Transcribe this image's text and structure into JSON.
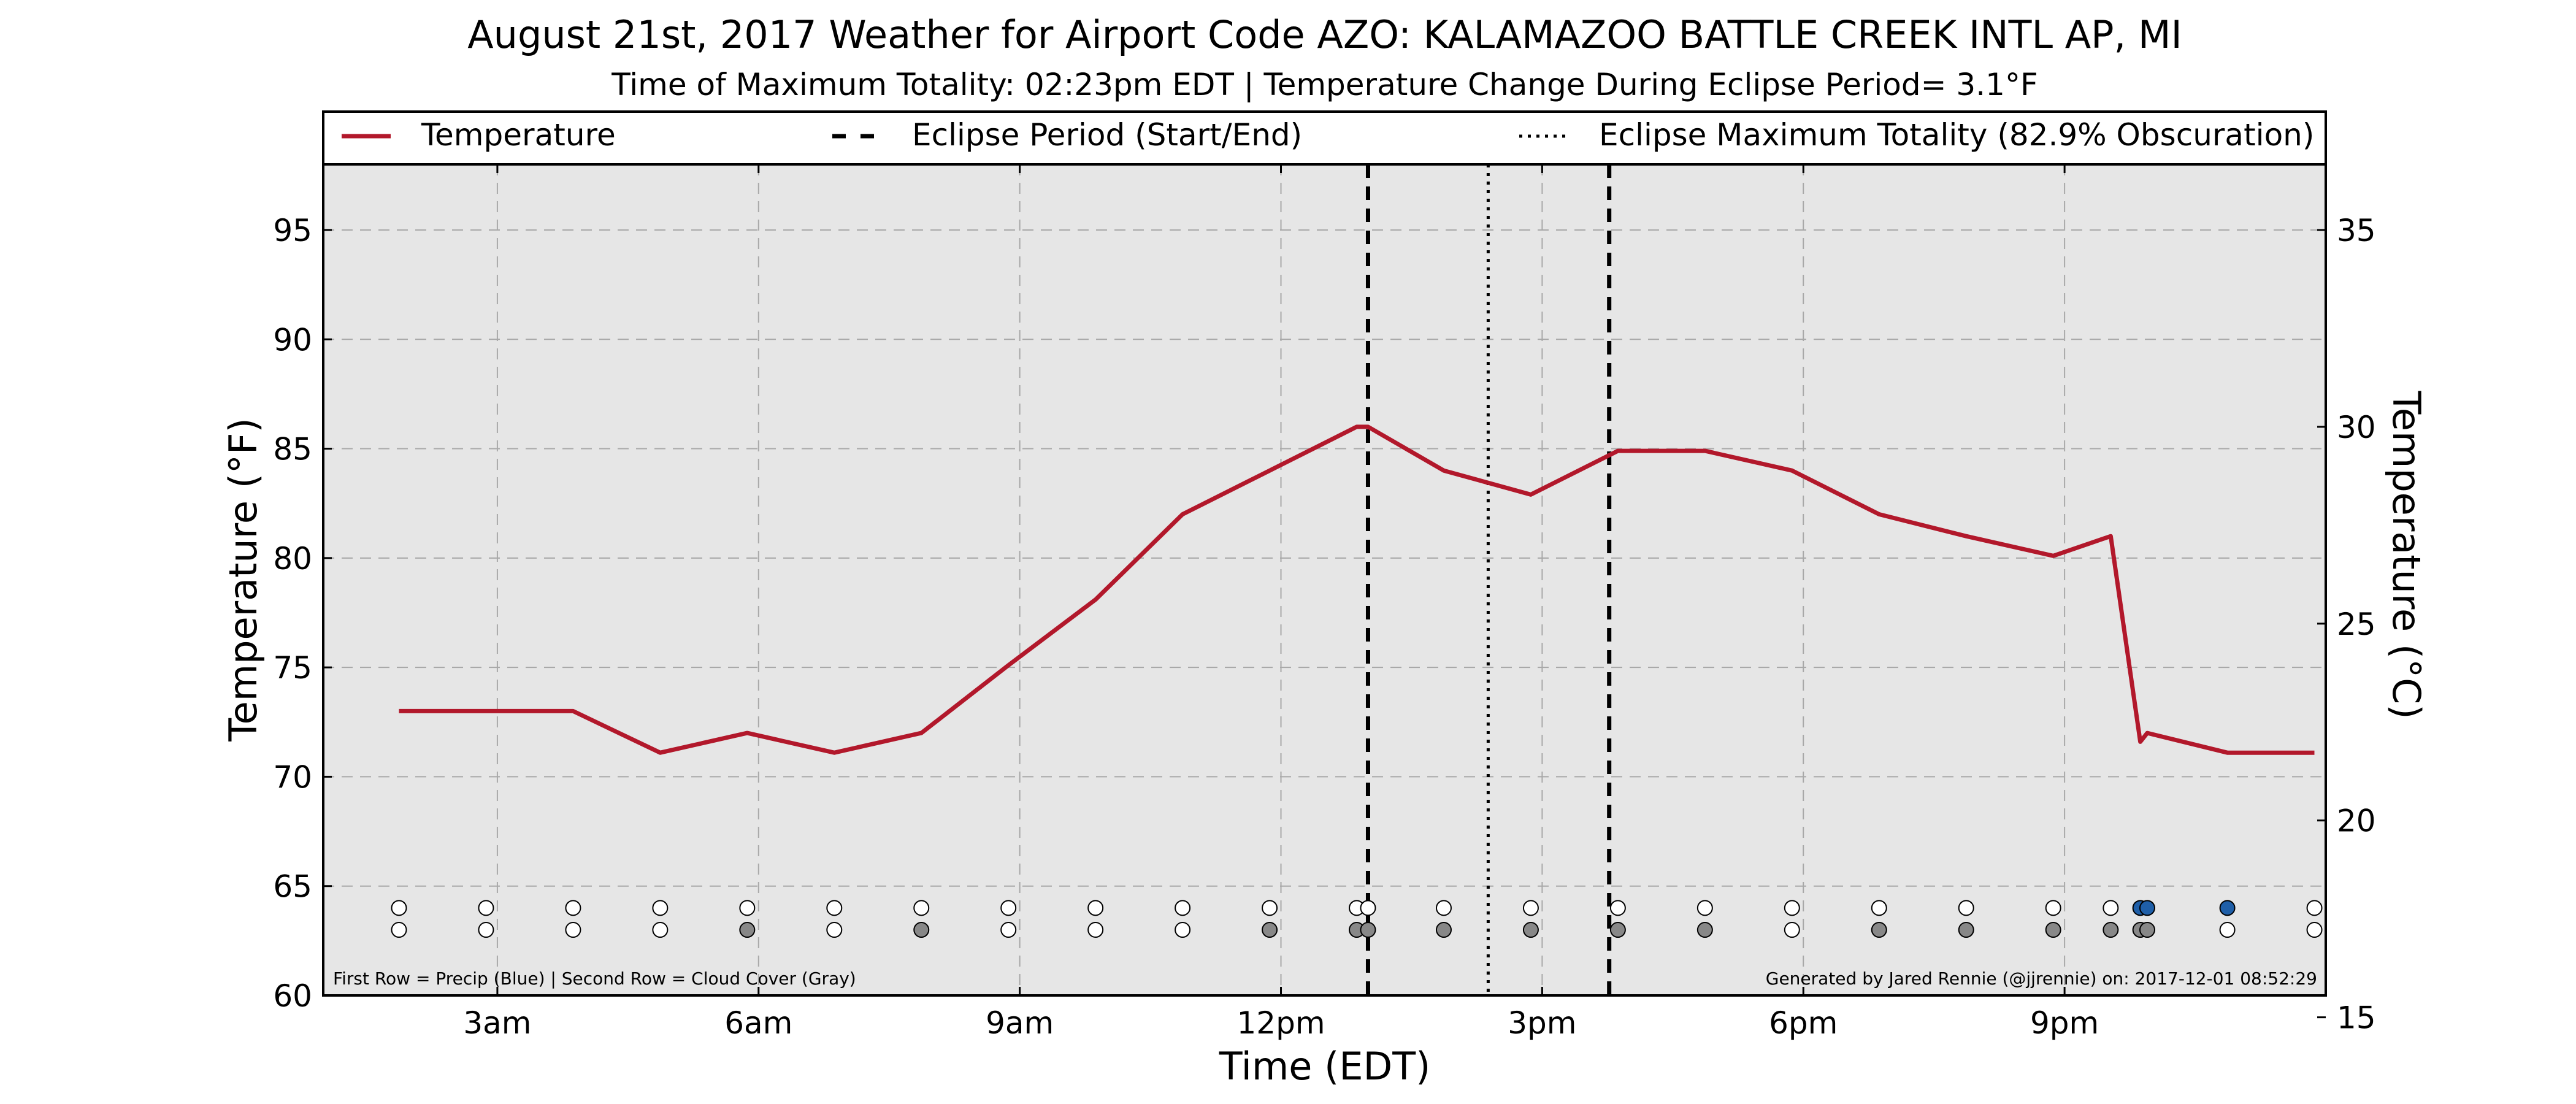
{
  "chart_data": {
    "type": "line",
    "title": "August 21st, 2017 Weather for Airport Code AZO: KALAMAZOO BATTLE CREEK INTL AP, MI",
    "subtitle": "Time of Maximum Totality: 02:23pm EDT | Temperature Change During Eclipse Period= 3.1°F",
    "xlabel": "Time (EDT)",
    "ylabel": "Temperature (°F)",
    "ylabel_right": "Temperature (°C)",
    "xlim": [
      1.0,
      24.0
    ],
    "ylim": [
      60,
      98
    ],
    "ylim_right_c": [
      15.5556,
      36.6667
    ],
    "x_ticks": [
      {
        "x": 3,
        "label": "3am"
      },
      {
        "x": 6,
        "label": "6am"
      },
      {
        "x": 9,
        "label": "9am"
      },
      {
        "x": 12,
        "label": "12pm"
      },
      {
        "x": 15,
        "label": "3pm"
      },
      {
        "x": 18,
        "label": "6pm"
      },
      {
        "x": 21,
        "label": "9pm"
      }
    ],
    "y_ticks": [
      60,
      65,
      70,
      75,
      80,
      85,
      90,
      95
    ],
    "y_ticks_right": [
      15,
      20,
      25,
      30,
      35
    ],
    "grid": true,
    "legend": {
      "placement": "top",
      "entries": [
        {
          "label": "Temperature",
          "style": "solid"
        },
        {
          "label": "Eclipse Period (Start/End)",
          "style": "dashed"
        },
        {
          "label": "Eclipse Maximum Totality (82.9% Obscuration)",
          "style": "dotted"
        }
      ]
    },
    "series": [
      {
        "name": "Temperature",
        "color": "#b2182b",
        "points": [
          [
            1.87,
            73
          ],
          [
            2.87,
            73
          ],
          [
            3.87,
            73
          ],
          [
            4.87,
            71.1
          ],
          [
            5.87,
            72
          ],
          [
            6.87,
            71.1
          ],
          [
            7.87,
            72
          ],
          [
            8.87,
            75.1
          ],
          [
            9.87,
            78.1
          ],
          [
            10.87,
            82
          ],
          [
            11.87,
            84
          ],
          [
            12.87,
            86
          ],
          [
            13.0,
            86
          ],
          [
            13.87,
            84
          ],
          [
            14.87,
            82.9
          ],
          [
            15.87,
            84.9
          ],
          [
            16.87,
            84.9
          ],
          [
            17.87,
            84
          ],
          [
            18.87,
            82
          ],
          [
            19.87,
            81
          ],
          [
            20.87,
            80.1
          ],
          [
            21.53,
            81
          ],
          [
            21.87,
            71.6
          ],
          [
            21.95,
            72
          ],
          [
            22.87,
            71.1
          ],
          [
            23.87,
            71.1
          ]
        ]
      }
    ],
    "eclipse_period": {
      "start": 13.0,
      "end": 15.77,
      "color": "#000000"
    },
    "max_totality": 14.38,
    "precip_row_y": 64,
    "cloud_row_y": 63,
    "precip_points": [
      {
        "x": 1.87,
        "color": "#ffffff"
      },
      {
        "x": 2.87,
        "color": "#ffffff"
      },
      {
        "x": 3.87,
        "color": "#ffffff"
      },
      {
        "x": 4.87,
        "color": "#ffffff"
      },
      {
        "x": 5.87,
        "color": "#ffffff"
      },
      {
        "x": 6.87,
        "color": "#ffffff"
      },
      {
        "x": 7.87,
        "color": "#ffffff"
      },
      {
        "x": 8.87,
        "color": "#ffffff"
      },
      {
        "x": 9.87,
        "color": "#ffffff"
      },
      {
        "x": 10.87,
        "color": "#ffffff"
      },
      {
        "x": 11.87,
        "color": "#ffffff"
      },
      {
        "x": 12.87,
        "color": "#ffffff"
      },
      {
        "x": 13.0,
        "color": "#ffffff"
      },
      {
        "x": 13.87,
        "color": "#ffffff"
      },
      {
        "x": 14.87,
        "color": "#ffffff"
      },
      {
        "x": 15.87,
        "color": "#ffffff"
      },
      {
        "x": 16.87,
        "color": "#ffffff"
      },
      {
        "x": 17.87,
        "color": "#ffffff"
      },
      {
        "x": 18.87,
        "color": "#ffffff"
      },
      {
        "x": 19.87,
        "color": "#ffffff"
      },
      {
        "x": 20.87,
        "color": "#ffffff"
      },
      {
        "x": 21.53,
        "color": "#ffffff"
      },
      {
        "x": 21.87,
        "color": "#1f5fa8"
      },
      {
        "x": 21.95,
        "color": "#1f5fa8"
      },
      {
        "x": 22.87,
        "color": "#1f5fa8"
      },
      {
        "x": 23.87,
        "color": "#ffffff"
      }
    ],
    "cloud_points": [
      {
        "x": 1.87,
        "color": "#ffffff"
      },
      {
        "x": 2.87,
        "color": "#ffffff"
      },
      {
        "x": 3.87,
        "color": "#ffffff"
      },
      {
        "x": 4.87,
        "color": "#ffffff"
      },
      {
        "x": 5.87,
        "color": "#888888"
      },
      {
        "x": 6.87,
        "color": "#ffffff"
      },
      {
        "x": 7.87,
        "color": "#888888"
      },
      {
        "x": 8.87,
        "color": "#ffffff"
      },
      {
        "x": 9.87,
        "color": "#ffffff"
      },
      {
        "x": 10.87,
        "color": "#ffffff"
      },
      {
        "x": 11.87,
        "color": "#888888"
      },
      {
        "x": 12.87,
        "color": "#888888"
      },
      {
        "x": 13.0,
        "color": "#888888"
      },
      {
        "x": 13.87,
        "color": "#888888"
      },
      {
        "x": 14.87,
        "color": "#888888"
      },
      {
        "x": 15.87,
        "color": "#888888"
      },
      {
        "x": 16.87,
        "color": "#888888"
      },
      {
        "x": 17.87,
        "color": "#ffffff"
      },
      {
        "x": 18.87,
        "color": "#888888"
      },
      {
        "x": 19.87,
        "color": "#888888"
      },
      {
        "x": 20.87,
        "color": "#888888"
      },
      {
        "x": 21.53,
        "color": "#888888"
      },
      {
        "x": 21.87,
        "color": "#888888"
      },
      {
        "x": 21.95,
        "color": "#888888"
      },
      {
        "x": 22.87,
        "color": "#ffffff"
      },
      {
        "x": 23.87,
        "color": "#ffffff"
      }
    ],
    "footnote_left": "First Row = Precip (Blue) | Second Row = Cloud Cover (Gray)",
    "footnote_right": "Generated by Jared Rennie (@jjrennie) on: 2017-12-01 08:52:29"
  }
}
